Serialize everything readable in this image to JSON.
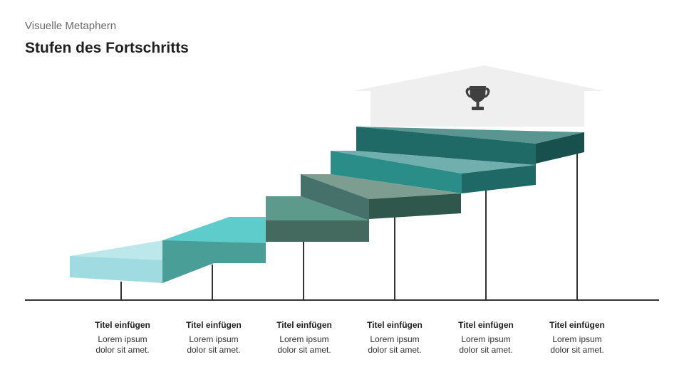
{
  "header": {
    "subtitle": "Visuelle Metaphern",
    "title": "Stufen des Fortschritts"
  },
  "goal": {
    "icon": "trophy-icon"
  },
  "steps": [
    {
      "title": "Titel einfügen",
      "line1": "Lorem ipsum",
      "line2": "dolor sit amet.",
      "color": "#9fdbe0"
    },
    {
      "title": "Titel einfügen",
      "line1": "Lorem ipsum",
      "line2": "dolor sit amet.",
      "color": "#4a9e98"
    },
    {
      "title": "Titel einfügen",
      "line1": "Lorem ipsum",
      "line2": "dolor sit amet.",
      "color": "#44695e"
    },
    {
      "title": "Titel einfügen",
      "line1": "Lorem ipsum",
      "line2": "dolor sit amet.",
      "color": "#2f574c"
    },
    {
      "title": "Titel einfügen",
      "line1": "Lorem ipsum",
      "line2": "dolor sit amet.",
      "color": "#2a7f78"
    },
    {
      "title": "Titel einfügen",
      "line1": "Lorem ipsum",
      "line2": "dolor sit amet.",
      "color": "#1b5c58"
    }
  ],
  "colors": {
    "baseline": "#333333",
    "house": "#efefef",
    "trophy": "#3f3f3f"
  }
}
